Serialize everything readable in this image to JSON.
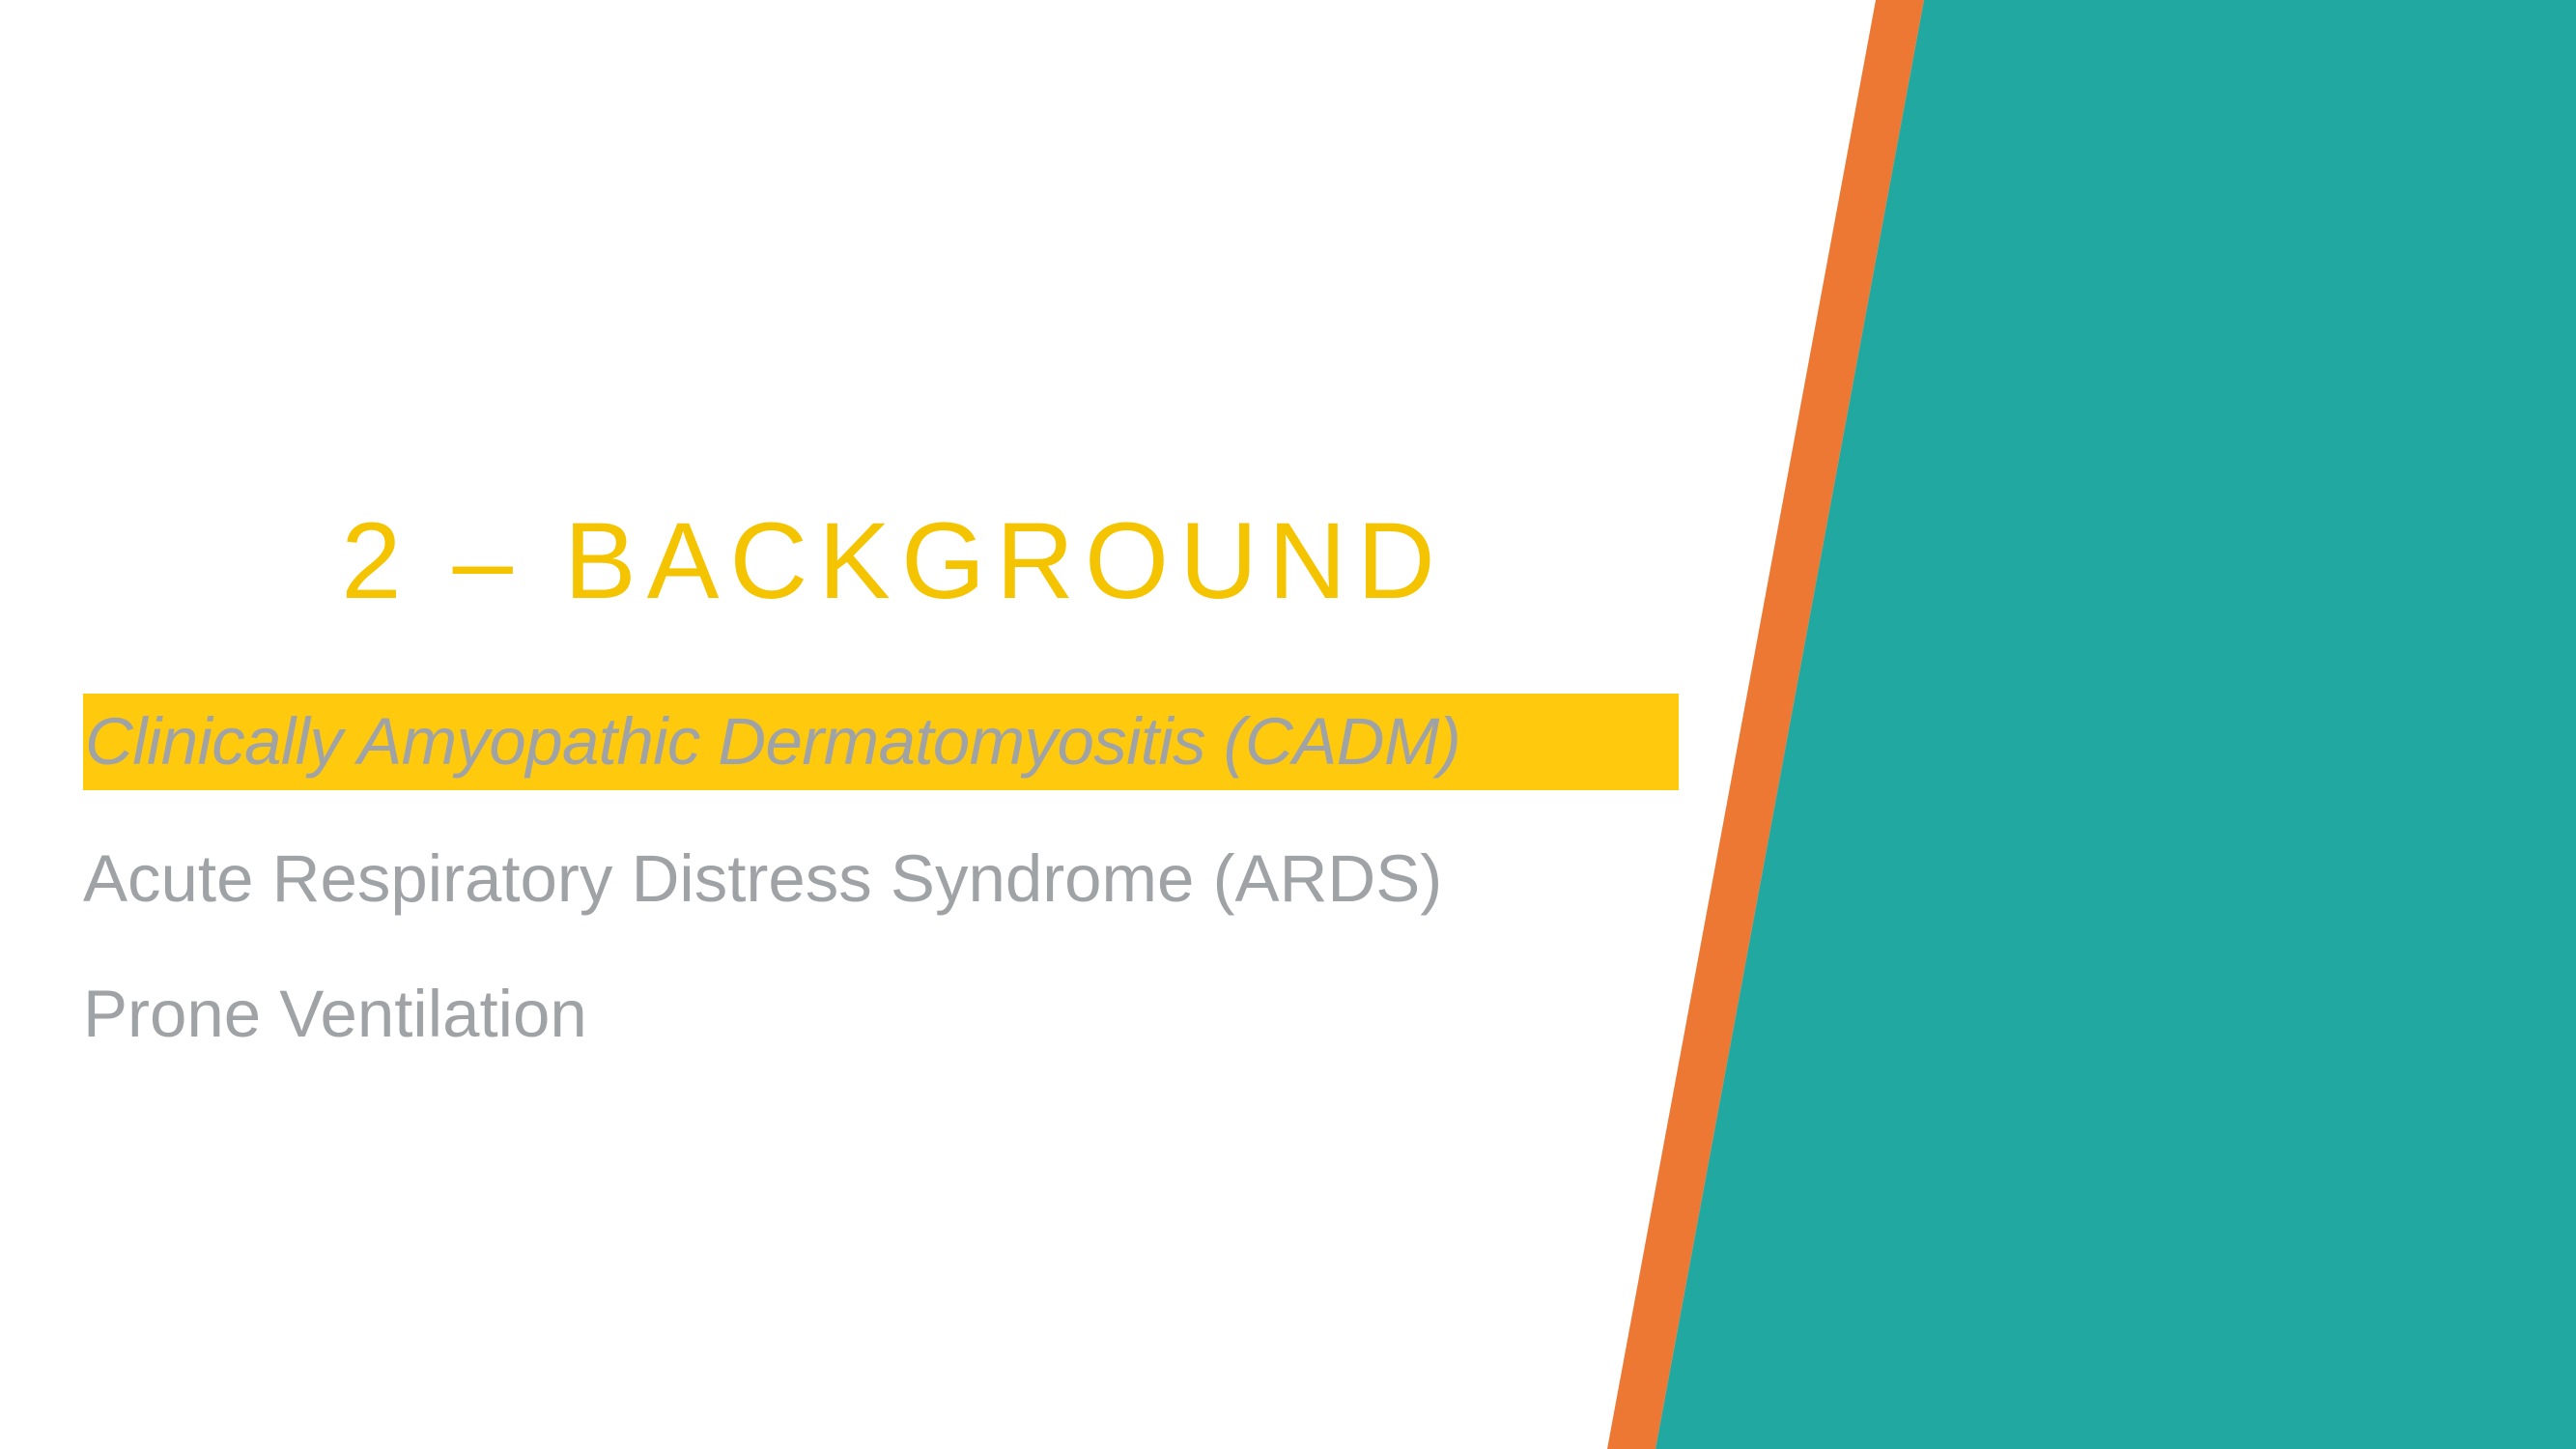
{
  "slide": {
    "title": "2 – BACKGROUND",
    "bullets": [
      {
        "text": "Clinically Amyopathic Dermatomyositis (CADM)",
        "highlighted": true
      },
      {
        "text": "Acute Respiratory Distress Syndrome (ARDS)",
        "highlighted": false
      },
      {
        "text": "Prone Ventilation",
        "highlighted": false
      }
    ]
  },
  "colors": {
    "background": "#ffffff",
    "title": "#f5c400",
    "bullet_text": "#a0a3a6",
    "highlight": "#ffc90e",
    "accent_stripe": "#ec7834",
    "teal_panel": "#21a8a1"
  }
}
